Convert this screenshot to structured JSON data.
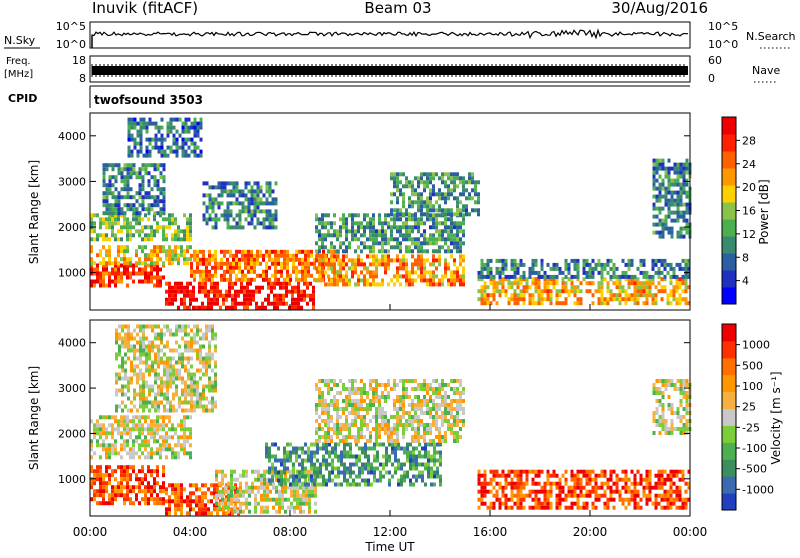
{
  "header": {
    "station": "Inuvik (fitACF)",
    "beam": "Beam 03",
    "date": "30/Aug/2016"
  },
  "top_panels": {
    "nsky_label": "N.Sky",
    "nsky_ticks": [
      "10^5",
      "10^0"
    ],
    "nsearch_label": "N.Search",
    "nsearch_ticks": [
      "10^5",
      "10^0"
    ],
    "freq_label": "Freq.",
    "freq_unit": "[MHz]",
    "freq_ticks": [
      "18",
      "8"
    ],
    "nave_label": "Nave",
    "nave_ticks": [
      "60",
      "0"
    ],
    "cpid_label": "CPID",
    "cpid_value": "twofsound 3503"
  },
  "chart_data": [
    {
      "type": "heatmap",
      "name": "Power",
      "ylabel": "Slant Range [km]",
      "yticks": [
        "4000",
        "3000",
        "2000",
        "1000"
      ],
      "ylim": [
        180,
        4500
      ],
      "xlim": [
        0,
        24
      ],
      "colorbar": {
        "label": "Power [dB]",
        "ticks": [
          "28",
          "24",
          "20",
          "16",
          "12",
          "8",
          "4"
        ],
        "colors": [
          "#0000ff",
          "#2030c0",
          "#2a5fa0",
          "#3a8a70",
          "#4caf50",
          "#8bc34a",
          "#ffd000",
          "#ff9800",
          "#ff6000",
          "#ff2000",
          "#ee0000"
        ]
      },
      "bands": [
        {
          "x0": 0.0,
          "x1": 3.0,
          "r0": 700,
          "r1": 1200,
          "level": 0.85
        },
        {
          "x0": 0.0,
          "x1": 4.0,
          "r0": 1200,
          "r1": 1600,
          "level": 0.6
        },
        {
          "x0": 0.0,
          "x1": 4.0,
          "r0": 1700,
          "r1": 2300,
          "level": 0.45
        },
        {
          "x0": 0.5,
          "x1": 3.0,
          "r0": 2300,
          "r1": 3400,
          "level": 0.3
        },
        {
          "x0": 1.5,
          "x1": 4.5,
          "r0": 3600,
          "r1": 4400,
          "level": 0.25
        },
        {
          "x0": 3.0,
          "x1": 9.0,
          "r0": 250,
          "r1": 800,
          "level": 0.95
        },
        {
          "x0": 4.0,
          "x1": 10.0,
          "r0": 800,
          "r1": 1500,
          "level": 0.75
        },
        {
          "x0": 4.5,
          "x1": 7.5,
          "r0": 2000,
          "r1": 3000,
          "level": 0.3
        },
        {
          "x0": 9.0,
          "x1": 15.0,
          "r0": 700,
          "r1": 1400,
          "level": 0.7
        },
        {
          "x0": 9.0,
          "x1": 15.0,
          "r0": 1500,
          "r1": 2300,
          "level": 0.35
        },
        {
          "x0": 12.0,
          "x1": 15.5,
          "r0": 2300,
          "r1": 3200,
          "level": 0.35
        },
        {
          "x0": 15.5,
          "x1": 24.0,
          "r0": 350,
          "r1": 900,
          "level": 0.65
        },
        {
          "x0": 15.5,
          "x1": 24.0,
          "r0": 900,
          "r1": 1300,
          "level": 0.3
        },
        {
          "x0": 22.5,
          "x1": 24.0,
          "r0": 1800,
          "r1": 3500,
          "level": 0.3
        }
      ]
    },
    {
      "type": "heatmap",
      "name": "Velocity",
      "ylabel": "Slant Range [km]",
      "yticks": [
        "4000",
        "3000",
        "2000",
        "1000"
      ],
      "ylim": [
        180,
        4500
      ],
      "xlim": [
        0,
        24
      ],
      "colorbar": {
        "label": "Velocity [m s⁻¹]",
        "ticks": [
          "1000",
          "500",
          "100",
          "25",
          "-25",
          "-100",
          "-500",
          "-1000"
        ],
        "colors": [
          "#2040c0",
          "#3a6ab0",
          "#3c8f5c",
          "#4cb050",
          "#7ccd3a",
          "#c8c8c8",
          "#f5b040",
          "#ff9800",
          "#ff7000",
          "#ff3000",
          "#ee0000"
        ]
      },
      "bands": [
        {
          "x0": 0.0,
          "x1": 3.0,
          "r0": 500,
          "r1": 1300,
          "level": 0.82
        },
        {
          "x0": 0.0,
          "x1": 4.0,
          "r0": 1500,
          "r1": 2400,
          "level": 0.5
        },
        {
          "x0": 1.0,
          "x1": 5.0,
          "r0": 2500,
          "r1": 4400,
          "level": 0.5
        },
        {
          "x0": 3.0,
          "x1": 6.0,
          "r0": 250,
          "r1": 900,
          "level": 0.82
        },
        {
          "x0": 5.0,
          "x1": 9.0,
          "r0": 300,
          "r1": 1200,
          "level": 0.5
        },
        {
          "x0": 7.0,
          "x1": 14.0,
          "r0": 900,
          "r1": 1800,
          "level": 0.25
        },
        {
          "x0": 9.0,
          "x1": 15.0,
          "r0": 1800,
          "r1": 3200,
          "level": 0.5
        },
        {
          "x0": 15.5,
          "x1": 24.0,
          "r0": 350,
          "r1": 1200,
          "level": 0.85
        },
        {
          "x0": 22.5,
          "x1": 24.0,
          "r0": 2000,
          "r1": 3200,
          "level": 0.5
        }
      ]
    }
  ],
  "xaxis": {
    "ticks": [
      "00:00",
      "04:00",
      "08:00",
      "12:00",
      "16:00",
      "20:00",
      "00:00"
    ],
    "label": "Time UT"
  }
}
